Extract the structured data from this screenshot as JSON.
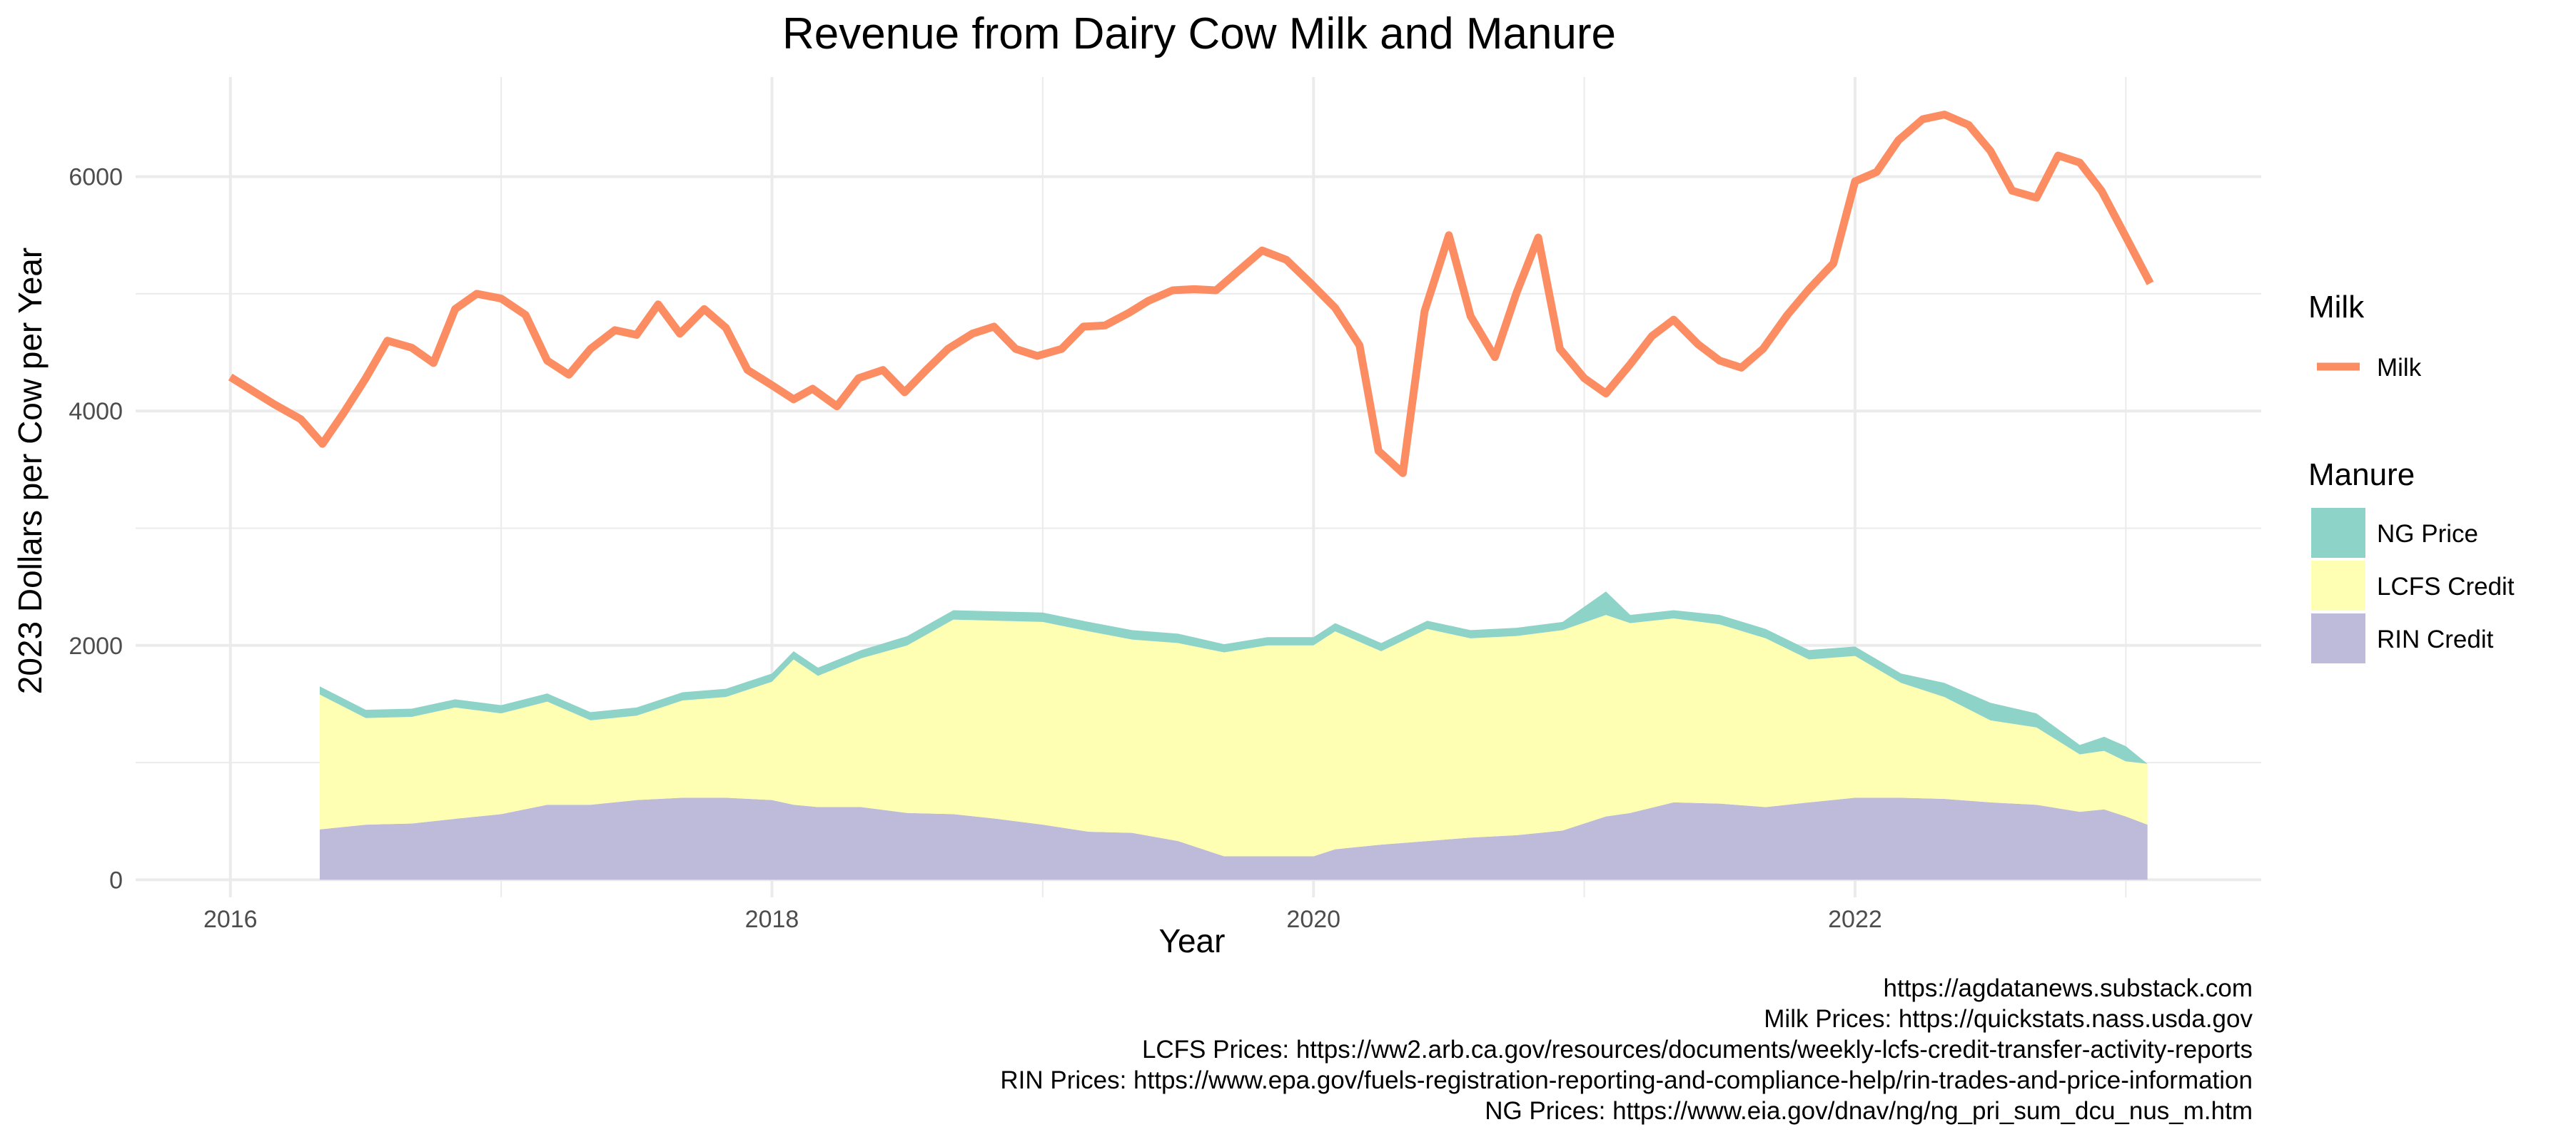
{
  "chart_data": {
    "type": "area",
    "title": "Revenue from Dairy Cow Milk and Manure",
    "xlabel": "Year",
    "ylabel": "2023 Dollars per Cow per Year",
    "xlim": [
      2015.65,
      2023.5
    ],
    "ylim": [
      -150,
      6850
    ],
    "x_ticks": [
      2016,
      2018,
      2020,
      2022
    ],
    "y_ticks": [
      0,
      2000,
      4000,
      6000
    ],
    "grid": true,
    "legend_placement": "right",
    "colors": {
      "milk": "#FC8D62",
      "ng": "#8DD3C7",
      "lcfs": "#FFFFB3",
      "rin": "#BEBADA",
      "grid": "#EBEBEB",
      "text": "#4D4D4D"
    },
    "legend": {
      "milk_title": "Milk",
      "milk_items": [
        "Milk"
      ],
      "manure_title": "Manure",
      "manure_items": [
        "NG Price",
        "LCFS Credit",
        "RIN Credit"
      ]
    },
    "milk": {
      "name": "Milk",
      "points": [
        [
          2016.0,
          4290
        ],
        [
          2016.16,
          4060
        ],
        [
          2016.26,
          3930
        ],
        [
          2016.34,
          3720
        ],
        [
          2016.42,
          3990
        ],
        [
          2016.5,
          4280
        ],
        [
          2016.58,
          4600
        ],
        [
          2016.67,
          4540
        ],
        [
          2016.75,
          4410
        ],
        [
          2016.83,
          4870
        ],
        [
          2016.91,
          5000
        ],
        [
          2017.0,
          4960
        ],
        [
          2017.09,
          4820
        ],
        [
          2017.17,
          4430
        ],
        [
          2017.25,
          4310
        ],
        [
          2017.33,
          4530
        ],
        [
          2017.42,
          4690
        ],
        [
          2017.5,
          4650
        ],
        [
          2017.58,
          4910
        ],
        [
          2017.66,
          4660
        ],
        [
          2017.75,
          4870
        ],
        [
          2017.83,
          4710
        ],
        [
          2017.91,
          4350
        ],
        [
          2018.0,
          4220
        ],
        [
          2018.08,
          4100
        ],
        [
          2018.15,
          4190
        ],
        [
          2018.24,
          4040
        ],
        [
          2018.32,
          4280
        ],
        [
          2018.41,
          4350
        ],
        [
          2018.49,
          4160
        ],
        [
          2018.57,
          4350
        ],
        [
          2018.65,
          4530
        ],
        [
          2018.74,
          4660
        ],
        [
          2018.82,
          4720
        ],
        [
          2018.9,
          4530
        ],
        [
          2018.98,
          4470
        ],
        [
          2019.07,
          4530
        ],
        [
          2019.15,
          4720
        ],
        [
          2019.23,
          4730
        ],
        [
          2019.32,
          4840
        ],
        [
          2019.39,
          4940
        ],
        [
          2019.48,
          5030
        ],
        [
          2019.56,
          5040
        ],
        [
          2019.64,
          5030
        ],
        [
          2019.72,
          5190
        ],
        [
          2019.81,
          5370
        ],
        [
          2019.9,
          5290
        ],
        [
          2019.99,
          5090
        ],
        [
          2020.08,
          4880
        ],
        [
          2020.17,
          4560
        ],
        [
          2020.24,
          3660
        ],
        [
          2020.33,
          3470
        ],
        [
          2020.41,
          4850
        ],
        [
          2020.5,
          5500
        ],
        [
          2020.58,
          4810
        ],
        [
          2020.67,
          4460
        ],
        [
          2020.75,
          5010
        ],
        [
          2020.83,
          5480
        ],
        [
          2020.91,
          4530
        ],
        [
          2021.0,
          4280
        ],
        [
          2021.08,
          4150
        ],
        [
          2021.17,
          4400
        ],
        [
          2021.25,
          4640
        ],
        [
          2021.33,
          4780
        ],
        [
          2021.42,
          4570
        ],
        [
          2021.5,
          4430
        ],
        [
          2021.58,
          4370
        ],
        [
          2021.66,
          4530
        ],
        [
          2021.75,
          4820
        ],
        [
          2021.83,
          5040
        ],
        [
          2021.92,
          5260
        ],
        [
          2022.0,
          5960
        ],
        [
          2022.08,
          6040
        ],
        [
          2022.16,
          6310
        ],
        [
          2022.25,
          6490
        ],
        [
          2022.33,
          6530
        ],
        [
          2022.42,
          6440
        ],
        [
          2022.5,
          6220
        ],
        [
          2022.58,
          5880
        ],
        [
          2022.67,
          5820
        ],
        [
          2022.75,
          6180
        ],
        [
          2022.83,
          6120
        ],
        [
          2022.91,
          5880
        ],
        [
          2022.99,
          5530
        ],
        [
          2023.09,
          5090
        ]
      ]
    },
    "manure": {
      "x": [
        2016.33,
        2016.5,
        2016.67,
        2016.83,
        2017.0,
        2017.17,
        2017.33,
        2017.5,
        2017.67,
        2017.83,
        2018.0,
        2018.08,
        2018.17,
        2018.33,
        2018.5,
        2018.67,
        2018.83,
        2019.0,
        2019.17,
        2019.33,
        2019.5,
        2019.67,
        2019.83,
        2020.0,
        2020.08,
        2020.25,
        2020.42,
        2020.58,
        2020.75,
        2020.92,
        2021.08,
        2021.17,
        2021.33,
        2021.5,
        2021.67,
        2021.83,
        2022.0,
        2022.17,
        2022.33,
        2022.5,
        2022.67,
        2022.83,
        2022.92,
        2023.0,
        2023.08
      ],
      "series": [
        {
          "name": "RIN Credit",
          "values": [
            430,
            470,
            480,
            520,
            560,
            640,
            640,
            680,
            700,
            700,
            680,
            640,
            620,
            620,
            570,
            560,
            520,
            470,
            410,
            400,
            330,
            200,
            200,
            200,
            260,
            300,
            330,
            360,
            380,
            420,
            540,
            570,
            660,
            650,
            620,
            660,
            700,
            700,
            690,
            660,
            640,
            580,
            600,
            540,
            470
          ]
        },
        {
          "name": "LCFS Credit",
          "values": [
            1150,
            910,
            910,
            950,
            860,
            880,
            720,
            720,
            830,
            860,
            1010,
            1240,
            1120,
            1270,
            1430,
            1660,
            1690,
            1730,
            1710,
            1650,
            1690,
            1740,
            1800,
            1800,
            1860,
            1650,
            1810,
            1700,
            1700,
            1710,
            1720,
            1620,
            1570,
            1530,
            1440,
            1220,
            1210,
            980,
            870,
            700,
            660,
            490,
            500,
            470,
            520
          ]
        },
        {
          "name": "NG Price",
          "values": [
            70,
            70,
            70,
            70,
            70,
            70,
            70,
            70,
            70,
            70,
            70,
            70,
            70,
            70,
            80,
            80,
            80,
            80,
            80,
            80,
            80,
            70,
            70,
            70,
            70,
            70,
            70,
            70,
            70,
            70,
            200,
            70,
            70,
            80,
            80,
            80,
            80,
            80,
            120,
            150,
            120,
            80,
            120,
            130,
            0
          ]
        }
      ]
    },
    "captions": [
      "https://agdatanews.substack.com",
      "Milk Prices: https://quickstats.nass.usda.gov",
      "LCFS Prices: https://ww2.arb.ca.gov/resources/documents/weekly-lcfs-credit-transfer-activity-reports",
      "RIN Prices: https://www.epa.gov/fuels-registration-reporting-and-compliance-help/rin-trades-and-price-information",
      "NG Prices: https://www.eia.gov/dnav/ng/ng_pri_sum_dcu_nus_m.htm"
    ]
  }
}
